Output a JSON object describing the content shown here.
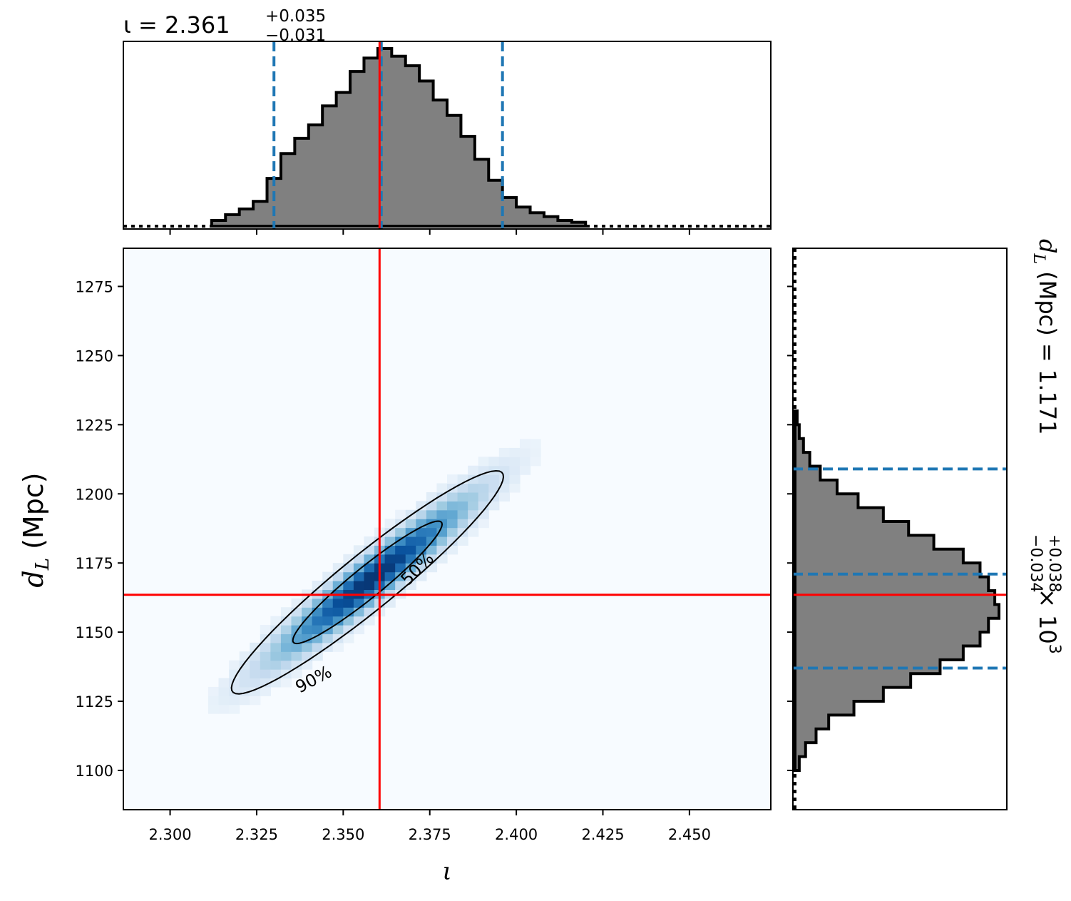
{
  "chart_data": {
    "type": "corner",
    "parameters": [
      {
        "name": "ι",
        "median": 2.361,
        "plus": "+0.035",
        "minus": "−0.031",
        "quantiles": [
          2.33,
          2.361,
          2.396
        ],
        "injection": 2.3605
      },
      {
        "name": "d_L",
        "unit": "Mpc",
        "median": 1171,
        "plus": "+0.038",
        "minus": "−0.034",
        "scale": "× 10",
        "exponent": "3",
        "quantiles": [
          1137,
          1171,
          1209
        ],
        "injection": 1163.5
      }
    ],
    "top_title": {
      "lhs": "ι = 2.361",
      "sup": "+0.035",
      "sub": "−0.031"
    },
    "right_title": {
      "lhs": "d",
      "lhs_sub": "L",
      "unit": " (Mpc) = 1.171",
      "sup": "+0.038",
      "sub": "−0.034",
      "tail": " × 10",
      "exp": "3"
    },
    "xlabel": "ι",
    "ylabel": {
      "main": "d",
      "sub": "L",
      "unit": " (Mpc)"
    },
    "xlim": [
      2.2865,
      2.4735
    ],
    "ylim": [
      1085.8,
      1288.8
    ],
    "xticks": [
      "2.300",
      "2.325",
      "2.350",
      "2.375",
      "2.400",
      "2.425",
      "2.450"
    ],
    "yticks": [
      "1100",
      "1125",
      "1150",
      "1175",
      "1200",
      "1225",
      "1250",
      "1275"
    ],
    "contour_labels": [
      "50%",
      "90%"
    ],
    "hist_x": {
      "edges": [
        2.312,
        2.316,
        2.32,
        2.324,
        2.328,
        2.332,
        2.336,
        2.34,
        2.344,
        2.348,
        2.352,
        2.356,
        2.36,
        2.364,
        2.368,
        2.372,
        2.376,
        2.38,
        2.384,
        2.388,
        2.392,
        2.396,
        2.4,
        2.404,
        2.408,
        2.412,
        2.416,
        2.42
      ],
      "counts": [
        0.03,
        0.06,
        0.09,
        0.13,
        0.25,
        0.38,
        0.46,
        0.53,
        0.63,
        0.7,
        0.81,
        0.88,
        0.93,
        0.89,
        0.84,
        0.76,
        0.66,
        0.58,
        0.47,
        0.35,
        0.24,
        0.15,
        0.1,
        0.07,
        0.05,
        0.03,
        0.02
      ]
    },
    "hist_y": {
      "edges": [
        1100,
        1105,
        1110,
        1115,
        1120,
        1125,
        1130,
        1135,
        1140,
        1145,
        1150,
        1155,
        1160,
        1165,
        1170,
        1175,
        1180,
        1185,
        1190,
        1195,
        1200,
        1205,
        1210,
        1215,
        1220,
        1225,
        1230
      ],
      "counts": [
        0.02,
        0.05,
        0.1,
        0.16,
        0.28,
        0.42,
        0.55,
        0.69,
        0.8,
        0.88,
        0.92,
        0.97,
        0.95,
        0.92,
        0.88,
        0.8,
        0.66,
        0.54,
        0.42,
        0.3,
        0.2,
        0.12,
        0.07,
        0.04,
        0.02,
        0.01
      ]
    },
    "colors": {
      "hist_fill": "#808080",
      "quantile": "#1f77b4",
      "injection": "#ff0000",
      "density": "#08306b"
    }
  }
}
